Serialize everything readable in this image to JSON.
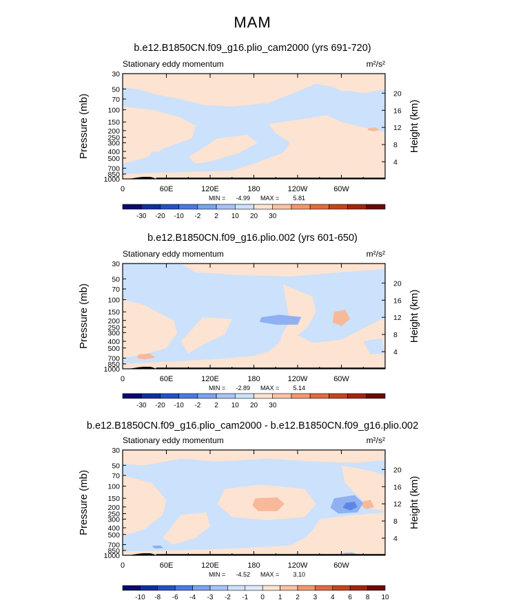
{
  "page_title": "MAM",
  "chart_data": [
    {
      "type": "heatmap",
      "title": "b.e12.B1850CN.f09_g16.plio_cam2000 (yrs 691-720)",
      "left_label": "Stationary eddy momentum",
      "units": "m²/s²",
      "ylabel": "Pressure (mb)",
      "ylabel_right": "Height (km)",
      "y_scale": "log",
      "ylim": [
        1000,
        30
      ],
      "x_ticks": [
        "0",
        "60E",
        "120E",
        "180",
        "120W",
        "60W"
      ],
      "y_ticks": [
        "30",
        "50",
        "70",
        "100",
        "150",
        "200",
        "250",
        "300",
        "400",
        "500",
        "700",
        "850",
        "1000"
      ],
      "height_ticks": [
        "4",
        "8",
        "12",
        "16",
        "20"
      ],
      "stats_min_label": "MIN =",
      "stats_min": "-4.99",
      "stats_max_label": "MAX =",
      "stats_max": "5.81",
      "colorbar_labels": [
        "-30",
        "-20",
        "-10",
        "-2",
        "2",
        "10",
        "20",
        "30"
      ],
      "colorbar_colors": [
        "#0a0a6e",
        "#0f2fa0",
        "#2450c8",
        "#4a78e6",
        "#7aa2f0",
        "#a6c4f6",
        "#cce1fb",
        "#fde3d2",
        "#f9c3a6",
        "#f3976f",
        "#e2693f",
        "#c8421d",
        "#a4240f",
        "#6b0a05"
      ]
    },
    {
      "type": "heatmap",
      "title": "b.e12.B1850CN.f09_g16.plio.002 (yrs 601-650)",
      "left_label": "Stationary eddy momentum",
      "units": "m²/s²",
      "ylabel": "Pressure (mb)",
      "ylabel_right": "Height (km)",
      "y_scale": "log",
      "ylim": [
        1000,
        30
      ],
      "x_ticks": [
        "0",
        "60E",
        "120E",
        "180",
        "120W",
        "60W"
      ],
      "y_ticks": [
        "30",
        "50",
        "70",
        "100",
        "150",
        "200",
        "250",
        "300",
        "400",
        "500",
        "700",
        "850",
        "1000"
      ],
      "height_ticks": [
        "4",
        "8",
        "12",
        "16",
        "20"
      ],
      "stats_min_label": "MIN =",
      "stats_min": "-2.89",
      "stats_max_label": "MAX =",
      "stats_max": "5.14",
      "colorbar_labels": [
        "-30",
        "-20",
        "-10",
        "-2",
        "2",
        "10",
        "20",
        "30"
      ],
      "colorbar_colors": [
        "#0a0a6e",
        "#0f2fa0",
        "#2450c8",
        "#4a78e6",
        "#7aa2f0",
        "#a6c4f6",
        "#cce1fb",
        "#fde3d2",
        "#f9c3a6",
        "#f3976f",
        "#e2693f",
        "#c8421d",
        "#a4240f",
        "#6b0a05"
      ]
    },
    {
      "type": "heatmap",
      "title": "b.e12.B1850CN.f09_g16.plio_cam2000 - b.e12.B1850CN.f09_g16.plio.002",
      "left_label": "Stationary eddy momentum",
      "units": "m²/s²",
      "ylabel": "Pressure (mb)",
      "ylabel_right": "Height (km)",
      "y_scale": "log",
      "ylim": [
        1000,
        30
      ],
      "x_ticks": [
        "0",
        "60E",
        "120E",
        "180",
        "120W",
        "60W"
      ],
      "y_ticks": [
        "30",
        "50",
        "70",
        "100",
        "150",
        "200",
        "250",
        "300",
        "400",
        "500",
        "700",
        "850",
        "1000"
      ],
      "height_ticks": [
        "4",
        "8",
        "12",
        "16",
        "20"
      ],
      "stats_min_label": "MIN =",
      "stats_min": "-4.52",
      "stats_max_label": "MAX =",
      "stats_max": "3.10",
      "colorbar_labels": [
        "-10",
        "-8",
        "-6",
        "-4",
        "-3",
        "-2",
        "-1",
        "0",
        "1",
        "2",
        "3",
        "4",
        "6",
        "8",
        "10"
      ],
      "colorbar_colors": [
        "#0a0a6e",
        "#0f2fa0",
        "#2450c8",
        "#4a78e6",
        "#7aa2f0",
        "#a6c4f6",
        "#cce1fb",
        "#deebfc",
        "#fde3d2",
        "#f9c3a6",
        "#f3976f",
        "#e2693f",
        "#c8421d",
        "#a4240f",
        "#6b0a05"
      ]
    }
  ],
  "colors": {
    "pale_blue": "#cce1fb",
    "pale_orange": "#fde3d2",
    "medium_blue": "#8fb1f2",
    "medium_orange": "#f8b99a",
    "strong_blue": "#5c86e8",
    "terrain": "#000000"
  }
}
